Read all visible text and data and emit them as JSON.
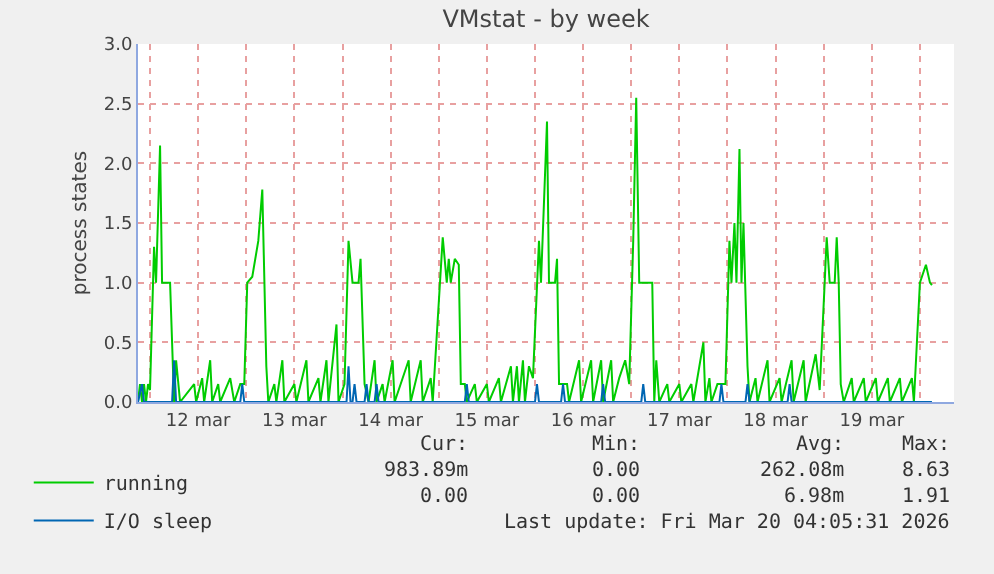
{
  "chart_data": {
    "type": "line",
    "title": "VMstat - by week",
    "ylabel": "process states",
    "xlim": [
      "2026-03-11T21:00",
      "2026-03-20T08:30"
    ],
    "xticks": [
      {
        "value": "2026-03-12T00:00",
        "label": null
      },
      {
        "value": "2026-03-12T12:00",
        "label": "12 mar"
      },
      {
        "value": "2026-03-13T00:00",
        "label": null
      },
      {
        "value": "2026-03-13T12:00",
        "label": "13 mar"
      },
      {
        "value": "2026-03-14T00:00",
        "label": null
      },
      {
        "value": "2026-03-14T12:00",
        "label": "14 mar"
      },
      {
        "value": "2026-03-15T00:00",
        "label": null
      },
      {
        "value": "2026-03-15T12:00",
        "label": "15 mar"
      },
      {
        "value": "2026-03-16T00:00",
        "label": null
      },
      {
        "value": "2026-03-16T12:00",
        "label": "16 mar"
      },
      {
        "value": "2026-03-17T00:00",
        "label": null
      },
      {
        "value": "2026-03-17T12:00",
        "label": "17 mar"
      },
      {
        "value": "2026-03-18T00:00",
        "label": null
      },
      {
        "value": "2026-03-18T12:00",
        "label": "18 mar"
      },
      {
        "value": "2026-03-19T00:00",
        "label": null
      },
      {
        "value": "2026-03-19T12:00",
        "label": "19 mar"
      },
      {
        "value": "2026-03-20T00:00",
        "label": null
      }
    ],
    "ylim": [
      0,
      3
    ],
    "yticks": [
      {
        "value": 0,
        "label": "0.0"
      },
      {
        "value": 0.5,
        "label": "0.5"
      },
      {
        "value": 1,
        "label": "1.0"
      },
      {
        "value": 1.5,
        "label": "1.5"
      },
      {
        "value": 2,
        "label": "2.0"
      },
      {
        "value": 2.5,
        "label": "2.5"
      },
      {
        "value": 3,
        "label": "3.0"
      }
    ],
    "grid": true,
    "legend": "bottom left",
    "marker": "none",
    "line_style": "solid",
    "series": [
      {
        "name": "running",
        "color": "#00cc00",
        "x": [
          "2026-03-11T21:00",
          "2026-03-11T21:30",
          "2026-03-11T22:00",
          "2026-03-11T22:30",
          "2026-03-11T23:00",
          "2026-03-11T23:30",
          "2026-03-12T00:00",
          "2026-03-12T01:00",
          "2026-03-12T01:30",
          "2026-03-12T02:30",
          "2026-03-12T03:00",
          "2026-03-12T05:00",
          "2026-03-12T06:00",
          "2026-03-12T06:30",
          "2026-03-12T07:30",
          "2026-03-12T11:00",
          "2026-03-12T11:30",
          "2026-03-12T13:00",
          "2026-03-12T13:30",
          "2026-03-12T15:00",
          "2026-03-12T15:30",
          "2026-03-12T17:00",
          "2026-03-12T17:30",
          "2026-03-12T20:00",
          "2026-03-12T21:00",
          "2026-03-12T22:30",
          "2026-03-12T23:30",
          "2026-03-13T00:15",
          "2026-03-13T01:30",
          "2026-03-13T03:00",
          "2026-03-13T04:00",
          "2026-03-13T05:00",
          "2026-03-13T05:30",
          "2026-03-13T07:00",
          "2026-03-13T07:30",
          "2026-03-13T09:00",
          "2026-03-13T09:30",
          "2026-03-13T12:00",
          "2026-03-13T12:30",
          "2026-03-13T15:00",
          "2026-03-13T15:30",
          "2026-03-13T18:00",
          "2026-03-13T18:30",
          "2026-03-13T20:00",
          "2026-03-13T20:30",
          "2026-03-13T22:30",
          "2026-03-13T23:00",
          "2026-03-14T00:30",
          "2026-03-14T01:30",
          "2026-03-14T02:30",
          "2026-03-14T04:00",
          "2026-03-14T04:30",
          "2026-03-14T05:30",
          "2026-03-14T06:30",
          "2026-03-14T08:00",
          "2026-03-14T08:30",
          "2026-03-14T10:00",
          "2026-03-14T10:30",
          "2026-03-14T12:30",
          "2026-03-14T13:00",
          "2026-03-14T16:30",
          "2026-03-14T17:00",
          "2026-03-14T19:30",
          "2026-03-14T20:00",
          "2026-03-14T22:00",
          "2026-03-14T22:30",
          "2026-03-15T01:00",
          "2026-03-15T02:00",
          "2026-03-15T02:30",
          "2026-03-15T03:00",
          "2026-03-15T04:00",
          "2026-03-15T05:00",
          "2026-03-15T05:30",
          "2026-03-15T06:30",
          "2026-03-15T07:00",
          "2026-03-15T09:00",
          "2026-03-15T09:30",
          "2026-03-15T12:00",
          "2026-03-15T12:30",
          "2026-03-15T15:00",
          "2026-03-15T15:30",
          "2026-03-15T18:00",
          "2026-03-15T18:30",
          "2026-03-15T19:30",
          "2026-03-15T20:00",
          "2026-03-15T21:00",
          "2026-03-15T21:30",
          "2026-03-15T22:30",
          "2026-03-15T23:30",
          "2026-03-16T01:00",
          "2026-03-16T01:30",
          "2026-03-16T03:00",
          "2026-03-16T03:30",
          "2026-03-16T05:00",
          "2026-03-16T05:30",
          "2026-03-16T06:00",
          "2026-03-16T08:00",
          "2026-03-16T08:30",
          "2026-03-16T11:00",
          "2026-03-16T11:30",
          "2026-03-16T14:00",
          "2026-03-16T14:30",
          "2026-03-16T16:30",
          "2026-03-16T17:00",
          "2026-03-16T19:00",
          "2026-03-16T19:30",
          "2026-03-16T21:00",
          "2026-03-16T22:30",
          "2026-03-16T23:30",
          "2026-03-17T00:30",
          "2026-03-17T01:15",
          "2026-03-17T02:00",
          "2026-03-17T05:15",
          "2026-03-17T05:45",
          "2026-03-17T06:15",
          "2026-03-17T07:00",
          "2026-03-17T09:00",
          "2026-03-17T09:30",
          "2026-03-17T12:00",
          "2026-03-17T12:30",
          "2026-03-17T15:00",
          "2026-03-17T15:30",
          "2026-03-17T18:00",
          "2026-03-17T18:30",
          "2026-03-17T19:30",
          "2026-03-17T20:00",
          "2026-03-17T21:30",
          "2026-03-17T23:30",
          "2026-03-18T00:30",
          "2026-03-18T01:00",
          "2026-03-18T01:45",
          "2026-03-18T02:15",
          "2026-03-18T03:00",
          "2026-03-18T03:30",
          "2026-03-18T04:00",
          "2026-03-18T05:00",
          "2026-03-18T05:30",
          "2026-03-18T07:00",
          "2026-03-18T07:30",
          "2026-03-18T10:00",
          "2026-03-18T10:30",
          "2026-03-18T13:00",
          "2026-03-18T13:30",
          "2026-03-18T16:00",
          "2026-03-18T16:30",
          "2026-03-18T19:00",
          "2026-03-18T19:30",
          "2026-03-18T22:00",
          "2026-03-18T23:00",
          "2026-03-19T00:15",
          "2026-03-19T00:45",
          "2026-03-19T01:30",
          "2026-03-19T02:45",
          "2026-03-19T03:15",
          "2026-03-19T03:45",
          "2026-03-19T04:15",
          "2026-03-19T05:00",
          "2026-03-19T07:00",
          "2026-03-19T07:30",
          "2026-03-19T10:00",
          "2026-03-19T10:30",
          "2026-03-19T13:00",
          "2026-03-19T13:30",
          "2026-03-19T16:00",
          "2026-03-19T16:30",
          "2026-03-19T19:00",
          "2026-03-19T19:30",
          "2026-03-19T22:00",
          "2026-03-19T22:30",
          "2026-03-20T00:00",
          "2026-03-20T01:30",
          "2026-03-20T02:30",
          "2026-03-20T03:00"
        ],
        "values": [
          0,
          0.15,
          0,
          0.15,
          0,
          0.15,
          0.1,
          1.3,
          1.0,
          2.15,
          1.0,
          1.0,
          0,
          0.35,
          0,
          0.15,
          0,
          0.2,
          0,
          0.35,
          0,
          0.15,
          0,
          0.2,
          0,
          0.15,
          0.15,
          1.0,
          1.05,
          1.35,
          1.78,
          0.3,
          0,
          0.15,
          0,
          0.35,
          0,
          0.15,
          0,
          0.35,
          0,
          0.2,
          0,
          0.35,
          0,
          0.65,
          0,
          0.15,
          1.35,
          1.0,
          1.0,
          1.2,
          0.15,
          0,
          0.35,
          0,
          0.15,
          0,
          0.35,
          0,
          0.35,
          0,
          0.35,
          0,
          0.2,
          0,
          1.38,
          1.0,
          1.2,
          1.0,
          1.2,
          1.15,
          0.15,
          0.15,
          0,
          0.15,
          0,
          0.15,
          0,
          0.2,
          0,
          0.3,
          0,
          0.3,
          0,
          0.35,
          0,
          0.3,
          0.2,
          1.35,
          1.0,
          2.35,
          1.0,
          1.0,
          1.2,
          0.15,
          0.15,
          0,
          0.35,
          0,
          0.35,
          0,
          0.35,
          0,
          0.35,
          0,
          0.2,
          0.35,
          0.15,
          1.35,
          2.55,
          1.0,
          1.0,
          0,
          0.35,
          0,
          0.15,
          0,
          0.15,
          0,
          0.15,
          0,
          0.5,
          0,
          0.2,
          0,
          0.15,
          0.15,
          1.35,
          1.0,
          1.5,
          1.0,
          2.12,
          1.0,
          1.5,
          0.3,
          0,
          0.2,
          0,
          0.35,
          0,
          0.2,
          0,
          0.35,
          0,
          0.35,
          0,
          0.4,
          0.1,
          1.0,
          1.38,
          1.0,
          1.0,
          1.38,
          1.0,
          0.15,
          0,
          0.2,
          0,
          0.2,
          0,
          0.2,
          0,
          0.2,
          0,
          0.2,
          0,
          0.2,
          0,
          1.0,
          1.15,
          1.0,
          0.98
        ]
      },
      {
        "name": "I/O sleep",
        "color": "#0066b3",
        "x": [
          "2026-03-11T21:00",
          "2026-03-11T22:00",
          "2026-03-11T22:30",
          "2026-03-12T05:30",
          "2026-03-12T06:00",
          "2026-03-12T06:30",
          "2026-03-12T22:30",
          "2026-03-12T23:00",
          "2026-03-12T23:30",
          "2026-03-14T01:00",
          "2026-03-14T01:30",
          "2026-03-14T02:00",
          "2026-03-14T02:30",
          "2026-03-14T03:00",
          "2026-03-14T03:30",
          "2026-03-14T05:30",
          "2026-03-14T06:00",
          "2026-03-14T06:30",
          "2026-03-14T08:00",
          "2026-03-14T08:30",
          "2026-03-14T09:00",
          "2026-03-15T06:30",
          "2026-03-15T07:00",
          "2026-03-15T07:30",
          "2026-03-16T00:00",
          "2026-03-16T00:30",
          "2026-03-16T01:00",
          "2026-03-16T06:30",
          "2026-03-16T07:00",
          "2026-03-16T07:30",
          "2026-03-16T16:30",
          "2026-03-16T17:00",
          "2026-03-16T17:30",
          "2026-03-17T02:30",
          "2026-03-17T03:00",
          "2026-03-17T03:30",
          "2026-03-17T22:00",
          "2026-03-17T22:30",
          "2026-03-17T23:00",
          "2026-03-18T04:30",
          "2026-03-18T05:00",
          "2026-03-18T05:30",
          "2026-03-18T15:00",
          "2026-03-18T15:30",
          "2026-03-18T16:00",
          "2026-03-20T03:00"
        ],
        "values": [
          0,
          0.15,
          0,
          0,
          0.35,
          0,
          0,
          0.15,
          0,
          0,
          0.3,
          0,
          0,
          0.15,
          0,
          0,
          0.15,
          0,
          0,
          0.15,
          0,
          0,
          0.15,
          0,
          0,
          0.15,
          0,
          0,
          0.15,
          0,
          0,
          0.15,
          0,
          0,
          0.15,
          0,
          0,
          0.15,
          0,
          0,
          0.15,
          0,
          0,
          0.15,
          0,
          0
        ]
      }
    ],
    "annotations": [
      "Cur:",
      "Min:",
      "Avg:",
      "Max:",
      "983.89m",
      "0.00",
      "262.08m",
      "8.63",
      "0.00",
      "0.00",
      "6.98m",
      "1.91",
      "Last update: Fri Mar 20 04:05:31 2026"
    ]
  }
}
